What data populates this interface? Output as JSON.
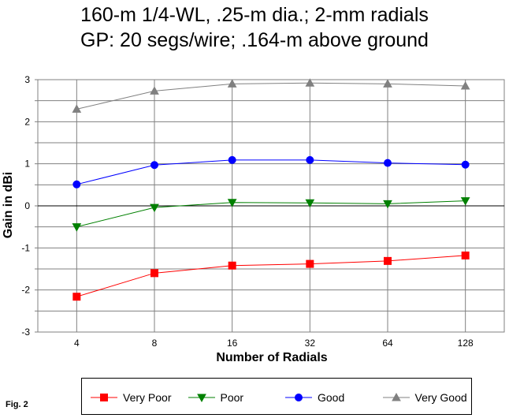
{
  "fig_label": "Fig. 2",
  "chart_data": {
    "type": "line",
    "title": [
      "160-m 1/4-WL, .25-m dia.; 2-mm radials",
      "GP: 20 segs/wire; .164-m above ground"
    ],
    "xlabel": "Number of Radials",
    "ylabel": "Gain in dBi",
    "categories": [
      "4",
      "8",
      "16",
      "32",
      "64",
      "128"
    ],
    "ylim": [
      -3,
      3
    ],
    "yticks": [
      -3,
      -2,
      -1,
      0,
      1,
      2,
      3
    ],
    "grid": true,
    "legend_position": "bottom",
    "series": [
      {
        "name": "Very Poor",
        "color": "#ff0000",
        "marker": "square",
        "values": [
          -2.16,
          -1.6,
          -1.42,
          -1.38,
          -1.31,
          -1.18
        ]
      },
      {
        "name": "Poor",
        "color": "#008000",
        "marker": "triangle-down",
        "values": [
          -0.5,
          -0.04,
          0.08,
          0.07,
          0.05,
          0.12
        ]
      },
      {
        "name": "Good",
        "color": "#0000ff",
        "marker": "circle",
        "values": [
          0.51,
          0.97,
          1.09,
          1.09,
          1.02,
          0.98
        ]
      },
      {
        "name": "Very Good",
        "color": "#808080",
        "marker": "triangle-up",
        "values": [
          2.3,
          2.73,
          2.9,
          2.92,
          2.9,
          2.85
        ]
      }
    ]
  }
}
